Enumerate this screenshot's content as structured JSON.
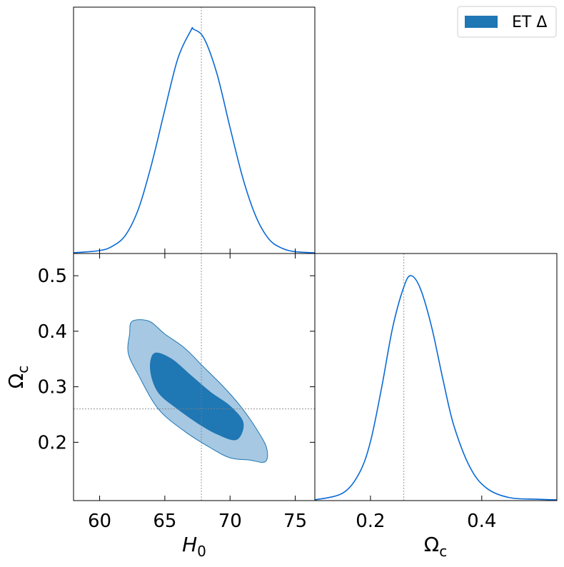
{
  "chart_data": {
    "type": "corner",
    "legend": {
      "label": "ET Δ",
      "color": "#1f77b4",
      "placement": "top-right"
    },
    "colors": {
      "line": "#0a6ad6",
      "contour_inner": "#1f77b4",
      "contour_outer": "#a6c8e2",
      "truth_line": "#808080"
    },
    "truth": {
      "H0": 67.8,
      "Omega_c": 0.26
    },
    "marginal_H0": {
      "xlabel": "H_0",
      "xlim": [
        58,
        76.5
      ],
      "xticks": [
        60,
        65,
        70,
        75
      ],
      "peak": 67.2,
      "x": [
        58,
        60,
        61,
        62,
        63,
        64,
        65,
        66,
        67,
        67.2,
        68,
        69,
        70,
        71,
        72,
        73,
        74,
        75,
        76.5
      ],
      "density": [
        0.0,
        0.01,
        0.03,
        0.08,
        0.2,
        0.4,
        0.64,
        0.87,
        0.995,
        1.0,
        0.96,
        0.8,
        0.56,
        0.33,
        0.16,
        0.06,
        0.02,
        0.005,
        0.0
      ]
    },
    "marginal_Omega_c": {
      "xlabel": "Ω_c",
      "xlim": [
        0.1,
        0.535
      ],
      "xticks": [
        0.2,
        0.4
      ],
      "peak": 0.273,
      "x": [
        0.1,
        0.15,
        0.18,
        0.2,
        0.22,
        0.24,
        0.26,
        0.273,
        0.29,
        0.31,
        0.33,
        0.35,
        0.38,
        0.41,
        0.45,
        0.5,
        0.535
      ],
      "density": [
        0.0,
        0.03,
        0.12,
        0.26,
        0.5,
        0.77,
        0.95,
        1.0,
        0.94,
        0.77,
        0.54,
        0.33,
        0.14,
        0.05,
        0.01,
        0.003,
        0.0
      ]
    },
    "joint": {
      "xlabel": "H_0",
      "ylabel": "Ω_c",
      "xlim": [
        58,
        76.5
      ],
      "ylim": [
        0.095,
        0.54
      ],
      "xticks": [
        60,
        65,
        70,
        75
      ],
      "yticks": [
        0.2,
        0.3,
        0.4,
        0.5
      ],
      "contour_68": [
        [
          64.2,
          0.36
        ],
        [
          65.5,
          0.35
        ],
        [
          67,
          0.32
        ],
        [
          68.5,
          0.29
        ],
        [
          70,
          0.265
        ],
        [
          71,
          0.235
        ],
        [
          70.5,
          0.205
        ],
        [
          69,
          0.215
        ],
        [
          67.5,
          0.235
        ],
        [
          66,
          0.26
        ],
        [
          64.5,
          0.29
        ],
        [
          63.9,
          0.33
        ]
      ],
      "contour_95": [
        [
          62.5,
          0.418
        ],
        [
          63.8,
          0.418
        ],
        [
          65,
          0.395
        ],
        [
          66.5,
          0.37
        ],
        [
          68,
          0.335
        ],
        [
          69.5,
          0.3
        ],
        [
          70.8,
          0.265
        ],
        [
          72,
          0.225
        ],
        [
          72.8,
          0.19
        ],
        [
          72.7,
          0.165
        ],
        [
          71.5,
          0.168
        ],
        [
          70,
          0.172
        ],
        [
          68.5,
          0.19
        ],
        [
          66.5,
          0.22
        ],
        [
          64.5,
          0.26
        ],
        [
          63,
          0.32
        ],
        [
          62.2,
          0.36
        ],
        [
          62.3,
          0.395
        ]
      ]
    }
  }
}
